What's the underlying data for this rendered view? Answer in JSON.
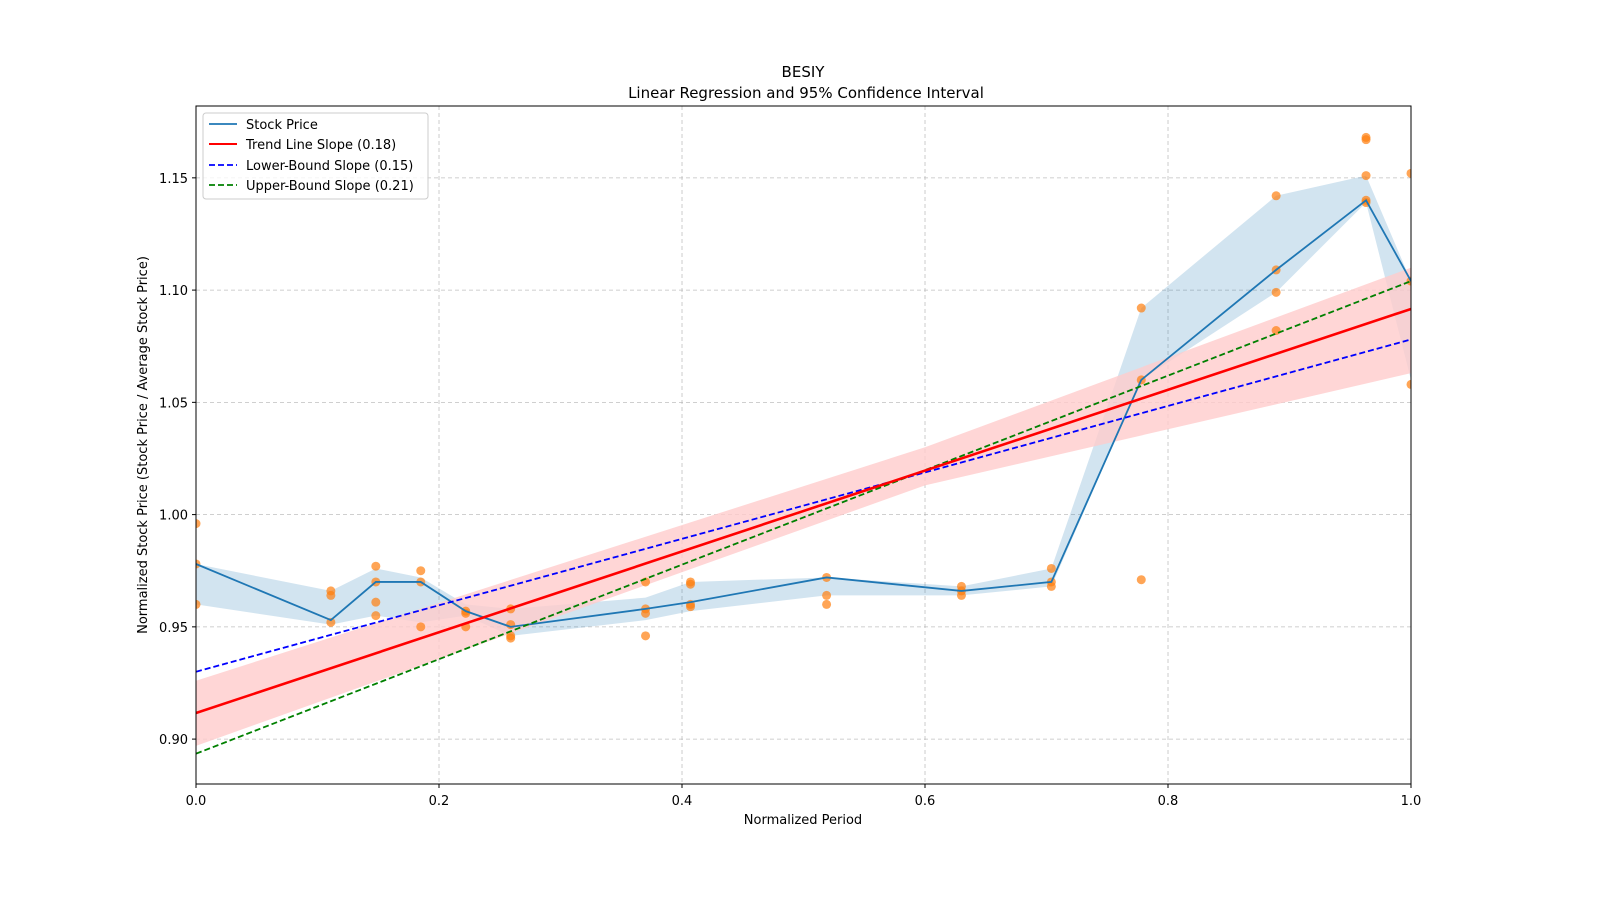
{
  "chart_data": {
    "type": "line",
    "title": "BESIY",
    "subtitle": "Linear Regression and 95% Confidence Interval",
    "xlabel": "Normalized Period",
    "ylabel": "Normalized Stock Price (Stock Price / Average Stock Price)",
    "xlim": [
      0.0,
      1.0
    ],
    "ylim": [
      0.88,
      1.182
    ],
    "grid": true,
    "legend_position": "top-left",
    "x_ticks": [
      "0.0",
      "0.2",
      "0.4",
      "0.6",
      "0.8",
      "1.0"
    ],
    "x_tick_values": [
      0.0,
      0.2,
      0.4,
      0.6,
      0.8,
      1.0
    ],
    "y_ticks": [
      "0.90",
      "0.95",
      "1.00",
      "1.05",
      "1.10",
      "1.15"
    ],
    "y_tick_values": [
      0.9,
      0.95,
      1.0,
      1.05,
      1.1,
      1.15
    ],
    "legend": [
      {
        "label": "Stock Price",
        "color": "#1f77b4",
        "style": "solid"
      },
      {
        "label": "Trend Line Slope (0.18)",
        "color": "#ff0000",
        "style": "solid"
      },
      {
        "label": "Lower-Bound Slope (0.15)",
        "color": "#0000ff",
        "style": "dashed"
      },
      {
        "label": "Upper-Bound Slope (0.21)",
        "color": "#008000",
        "style": "dashed"
      }
    ],
    "stock_price": {
      "name": "Stock Price",
      "color": "#1f77b4",
      "x": [
        0.0,
        0.111,
        0.148,
        0.185,
        0.222,
        0.259,
        0.37,
        0.407,
        0.519,
        0.63,
        0.704,
        0.778,
        0.889,
        0.963,
        1.0
      ],
      "y": [
        0.978,
        0.953,
        0.97,
        0.97,
        0.957,
        0.95,
        0.958,
        0.961,
        0.972,
        0.966,
        0.97,
        1.06,
        1.109,
        1.14,
        1.104
      ],
      "band_lower": [
        0.96,
        0.951,
        0.955,
        0.952,
        0.955,
        0.946,
        0.953,
        0.957,
        0.964,
        0.964,
        0.968,
        1.06,
        1.099,
        1.139,
        1.06
      ],
      "band_upper": [
        0.978,
        0.966,
        0.976,
        0.972,
        0.96,
        0.958,
        0.963,
        0.97,
        0.972,
        0.968,
        0.976,
        1.092,
        1.142,
        1.151,
        1.104
      ],
      "band_color": "#1f77b4"
    },
    "trend_line": {
      "name": "Trend Line Slope (0.18)",
      "intercept": 0.9116,
      "slope": 0.18,
      "color": "#ff0000",
      "ci_x": [
        0.0,
        0.6,
        1.0
      ],
      "ci_lower": [
        0.897,
        1.013,
        1.063
      ],
      "ci_upper": [
        0.926,
        1.03,
        1.11
      ],
      "ci_color": "#ffcccc"
    },
    "lower_bound": {
      "name": "Lower-Bound Slope (0.15)",
      "intercept": 0.93,
      "slope": 0.148,
      "color": "#0000ff"
    },
    "upper_bound": {
      "name": "Upper-Bound Slope (0.21)",
      "intercept": 0.8935,
      "slope": 0.2105,
      "color": "#008000"
    },
    "scatter": {
      "color": "#ff7f0e",
      "points": [
        [
          0.0,
          0.996
        ],
        [
          0.0,
          0.978
        ],
        [
          0.0,
          0.96
        ],
        [
          0.111,
          0.966
        ],
        [
          0.111,
          0.964
        ],
        [
          0.111,
          0.952
        ],
        [
          0.148,
          0.977
        ],
        [
          0.148,
          0.97
        ],
        [
          0.148,
          0.961
        ],
        [
          0.148,
          0.955
        ],
        [
          0.185,
          0.975
        ],
        [
          0.185,
          0.97
        ],
        [
          0.185,
          0.95
        ],
        [
          0.222,
          0.957
        ],
        [
          0.222,
          0.956
        ],
        [
          0.222,
          0.95
        ],
        [
          0.259,
          0.958
        ],
        [
          0.259,
          0.951
        ],
        [
          0.259,
          0.946
        ],
        [
          0.259,
          0.945
        ],
        [
          0.37,
          0.97
        ],
        [
          0.37,
          0.958
        ],
        [
          0.37,
          0.956
        ],
        [
          0.37,
          0.946
        ],
        [
          0.407,
          0.97
        ],
        [
          0.407,
          0.969
        ],
        [
          0.407,
          0.96
        ],
        [
          0.407,
          0.959
        ],
        [
          0.519,
          0.972
        ],
        [
          0.519,
          0.964
        ],
        [
          0.519,
          0.96
        ],
        [
          0.63,
          0.968
        ],
        [
          0.63,
          0.966
        ],
        [
          0.63,
          0.964
        ],
        [
          0.704,
          0.976
        ],
        [
          0.704,
          0.97
        ],
        [
          0.704,
          0.968
        ],
        [
          0.778,
          1.092
        ],
        [
          0.778,
          1.06
        ],
        [
          0.778,
          0.971
        ],
        [
          0.889,
          1.142
        ],
        [
          0.889,
          1.109
        ],
        [
          0.889,
          1.099
        ],
        [
          0.889,
          1.082
        ],
        [
          0.963,
          1.168
        ],
        [
          0.963,
          1.167
        ],
        [
          0.963,
          1.151
        ],
        [
          0.963,
          1.14
        ],
        [
          0.963,
          1.139
        ],
        [
          1.0,
          1.152
        ],
        [
          1.0,
          1.104
        ],
        [
          1.0,
          1.058
        ]
      ]
    }
  }
}
